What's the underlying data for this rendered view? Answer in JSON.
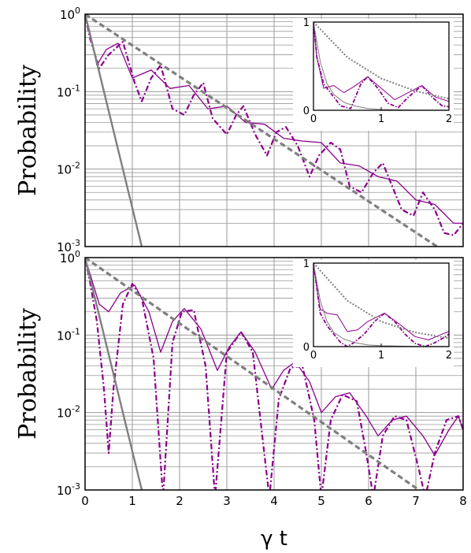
{
  "colors": {
    "solid": "#8b008b",
    "dashdot": "#8b008b",
    "gray": "#7f7f7f",
    "grid": "#9a9a9a",
    "axes": "#000000"
  },
  "chart_data": [
    {
      "type": "line",
      "panel": "top",
      "ylabel": "Probability",
      "yscale": "log",
      "ylim": [
        0.001,
        1
      ],
      "xlim": [
        0,
        8
      ],
      "yticks": [
        {
          "base": "10",
          "exp": "0"
        },
        {
          "base": "10",
          "exp": "-1"
        },
        {
          "base": "10",
          "exp": "-2"
        },
        {
          "base": "10",
          "exp": "-3"
        }
      ],
      "series": [
        {
          "style": "solid-purple",
          "x": [
            0,
            0.1,
            0.25,
            0.45,
            0.7,
            1.0,
            1.4,
            1.8,
            2.2,
            2.6,
            3.0,
            3.4,
            3.8,
            4.2,
            4.6,
            5.0,
            5.4,
            5.8,
            6.2,
            6.6,
            7.0,
            7.4,
            7.8,
            8.0
          ],
          "y": [
            1.0,
            0.6,
            0.22,
            0.35,
            0.42,
            0.15,
            0.19,
            0.11,
            0.12,
            0.06,
            0.065,
            0.04,
            0.038,
            0.025,
            0.023,
            0.022,
            0.012,
            0.011,
            0.008,
            0.007,
            0.004,
            0.0035,
            0.002,
            0.002
          ]
        },
        {
          "style": "dashdot-purple",
          "x": [
            0,
            0.1,
            0.3,
            0.5,
            0.8,
            1.05,
            1.2,
            1.4,
            1.6,
            1.85,
            2.1,
            2.3,
            2.5,
            2.7,
            3.0,
            3.2,
            3.35,
            3.6,
            3.85,
            4.05,
            4.25,
            4.5,
            4.75,
            4.95,
            5.2,
            5.4,
            5.6,
            5.85,
            6.1,
            6.3,
            6.5,
            6.7,
            6.95,
            7.15,
            7.4,
            7.6,
            7.8,
            8.0
          ],
          "y": [
            1.0,
            0.5,
            0.2,
            0.3,
            0.44,
            0.13,
            0.075,
            0.15,
            0.22,
            0.06,
            0.05,
            0.09,
            0.13,
            0.045,
            0.028,
            0.05,
            0.065,
            0.028,
            0.015,
            0.03,
            0.035,
            0.02,
            0.008,
            0.015,
            0.022,
            0.018,
            0.006,
            0.005,
            0.009,
            0.012,
            0.006,
            0.003,
            0.0025,
            0.005,
            0.003,
            0.0015,
            0.0014,
            0.002
          ]
        },
        {
          "style": "dashed-gray",
          "x": [
            0,
            8
          ],
          "y": [
            1.0,
            0.0006
          ]
        },
        {
          "style": "solid-gray",
          "x": [
            0,
            1.2
          ],
          "y": [
            1.0,
            0.001
          ]
        }
      ],
      "inset": {
        "xlim": [
          0,
          2
        ],
        "ylim": [
          0,
          1
        ],
        "xticks": [
          "0",
          "1",
          "2"
        ],
        "yticks": [
          "0",
          "1"
        ],
        "series": [
          {
            "style": "solid-purple",
            "x": [
              0,
              0.05,
              0.15,
              0.3,
              0.45,
              0.6,
              0.8,
              1.0,
              1.2,
              1.4,
              1.6,
              1.8,
              2.0
            ],
            "y": [
              1.0,
              0.6,
              0.25,
              0.28,
              0.2,
              0.27,
              0.38,
              0.25,
              0.12,
              0.2,
              0.28,
              0.15,
              0.1
            ]
          },
          {
            "style": "dashdot-purple",
            "x": [
              0,
              0.05,
              0.15,
              0.25,
              0.4,
              0.55,
              0.7,
              0.8,
              0.95,
              1.1,
              1.25,
              1.4,
              1.6,
              1.75,
              1.9,
              2.0
            ],
            "y": [
              1.0,
              0.6,
              0.3,
              0.2,
              0.05,
              0.02,
              0.3,
              0.38,
              0.25,
              0.08,
              0.03,
              0.15,
              0.28,
              0.15,
              0.05,
              0.04
            ]
          },
          {
            "style": "dashed-gray",
            "x": [
              0,
              0.5,
              1.0,
              1.5,
              2.0
            ],
            "y": [
              1.0,
              0.6,
              0.36,
              0.22,
              0.13
            ]
          },
          {
            "style": "solid-gray",
            "x": [
              0,
              0.1,
              0.2,
              0.3,
              0.45,
              0.6,
              0.8,
              1.0,
              1.5,
              2.0
            ],
            "y": [
              1.0,
              0.55,
              0.3,
              0.18,
              0.09,
              0.05,
              0.02,
              0.01,
              0.003,
              0.001
            ]
          }
        ]
      }
    },
    {
      "type": "line",
      "panel": "bottom",
      "ylabel": "Probability",
      "xlabel": "γ t",
      "yscale": "log",
      "ylim": [
        0.001,
        1
      ],
      "xlim": [
        0,
        8
      ],
      "xticks": [
        "0",
        "1",
        "2",
        "3",
        "4",
        "5",
        "6",
        "7",
        "8"
      ],
      "yticks": [
        {
          "base": "10",
          "exp": "0"
        },
        {
          "base": "10",
          "exp": "-1"
        },
        {
          "base": "10",
          "exp": "-2"
        },
        {
          "base": "10",
          "exp": "-3"
        }
      ],
      "series": [
        {
          "style": "solid-purple",
          "x": [
            0,
            0.15,
            0.3,
            0.5,
            0.75,
            1.05,
            1.35,
            1.6,
            1.85,
            2.1,
            2.45,
            2.8,
            3.05,
            3.3,
            3.6,
            3.95,
            4.2,
            4.45,
            4.75,
            5.0,
            5.3,
            5.6,
            5.95,
            6.2,
            6.5,
            6.8,
            7.15,
            7.4,
            7.7,
            7.9,
            8.0
          ],
          "y": [
            1.0,
            0.5,
            0.25,
            0.2,
            0.35,
            0.44,
            0.2,
            0.06,
            0.15,
            0.22,
            0.12,
            0.035,
            0.07,
            0.11,
            0.06,
            0.02,
            0.035,
            0.045,
            0.025,
            0.01,
            0.016,
            0.018,
            0.009,
            0.005,
            0.008,
            0.009,
            0.005,
            0.0028,
            0.006,
            0.009,
            0.006
          ]
        },
        {
          "style": "dashdot-purple",
          "x": [
            0,
            0.1,
            0.25,
            0.4,
            0.5,
            0.6,
            0.8,
            1.0,
            1.2,
            1.45,
            1.65,
            1.85,
            2.05,
            2.3,
            2.55,
            2.75,
            3.0,
            3.3,
            3.55,
            3.75,
            3.9,
            4.1,
            4.35,
            4.6,
            4.85,
            5.0,
            5.2,
            5.45,
            5.75,
            5.95,
            6.1,
            6.3,
            6.55,
            6.8,
            7.05,
            7.2,
            7.4,
            7.65,
            7.9,
            8.0
          ],
          "y": [
            1.0,
            0.5,
            0.15,
            0.02,
            0.003,
            0.02,
            0.25,
            0.46,
            0.3,
            0.05,
            0.0008,
            0.08,
            0.2,
            0.21,
            0.04,
            0.0008,
            0.06,
            0.11,
            0.06,
            0.005,
            0.0008,
            0.015,
            0.038,
            0.04,
            0.008,
            0.0008,
            0.008,
            0.017,
            0.014,
            0.003,
            0.0008,
            0.005,
            0.009,
            0.008,
            0.002,
            0.0008,
            0.003,
            0.008,
            0.009,
            0.006
          ]
        },
        {
          "style": "dashed-gray",
          "x": [
            0,
            8
          ],
          "y": [
            1.0,
            0.0004
          ]
        },
        {
          "style": "solid-gray",
          "x": [
            0,
            1.2
          ],
          "y": [
            1.0,
            0.001
          ]
        }
      ],
      "inset": {
        "xlim": [
          0,
          2
        ],
        "ylim": [
          0,
          1
        ],
        "xticks": [
          "0",
          "1",
          "2"
        ],
        "yticks": [
          "0",
          "1"
        ],
        "series": [
          {
            "style": "solid-purple",
            "x": [
              0,
              0.05,
              0.1,
              0.2,
              0.35,
              0.5,
              0.65,
              0.8,
              1.05,
              1.3,
              1.5,
              1.7,
              1.9,
              2.0
            ],
            "y": [
              1.0,
              0.7,
              0.45,
              0.4,
              0.38,
              0.18,
              0.2,
              0.3,
              0.4,
              0.25,
              0.12,
              0.08,
              0.15,
              0.18
            ]
          },
          {
            "style": "dashdot-purple",
            "x": [
              0,
              0.05,
              0.1,
              0.2,
              0.3,
              0.4,
              0.5,
              0.6,
              0.75,
              0.9,
              1.05,
              1.2,
              1.35,
              1.5,
              1.65,
              1.8,
              1.95,
              2.0
            ],
            "y": [
              1.0,
              0.7,
              0.4,
              0.25,
              0.15,
              0.05,
              0.0,
              0.05,
              0.15,
              0.3,
              0.4,
              0.3,
              0.15,
              0.04,
              0.0,
              0.05,
              0.12,
              0.15
            ]
          },
          {
            "style": "dashed-gray",
            "x": [
              0,
              0.5,
              1.0,
              1.5,
              2.0
            ],
            "y": [
              1.0,
              0.55,
              0.3,
              0.17,
              0.1
            ]
          },
          {
            "style": "solid-gray",
            "x": [
              0,
              0.1,
              0.2,
              0.3,
              0.45,
              0.6,
              0.8,
              1.0,
              1.5,
              2.0
            ],
            "y": [
              1.0,
              0.55,
              0.3,
              0.17,
              0.09,
              0.05,
              0.02,
              0.01,
              0.003,
              0.001
            ]
          }
        ]
      }
    }
  ]
}
